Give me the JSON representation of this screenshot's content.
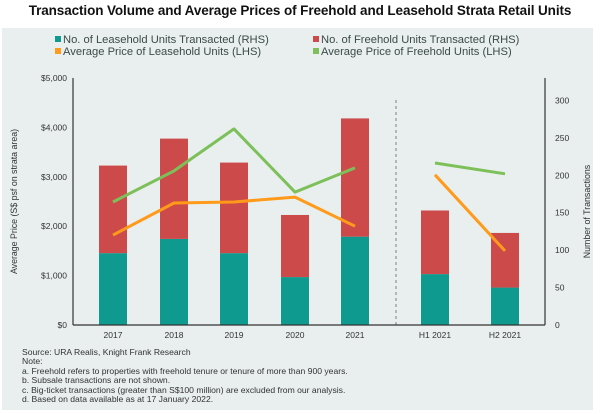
{
  "title": "Transaction Volume and Average Prices of Freehold and Leasehold Strata Retail Units",
  "colors": {
    "background": "#e8efee",
    "leasehold_units": "#0e9a8e",
    "freehold_units": "#cc4a4a",
    "leasehold_price": "#ff9a1a",
    "freehold_price": "#7dc05a",
    "axis": "#333333"
  },
  "notes": {
    "source": "Source: URA Realis, Knight Frank Research",
    "heading": "Note:",
    "items": [
      "a. Freehold refers to properties with freehold tenure or tenure of more than 900 years.",
      "b. Subsale transactions are not shown.",
      "c. Big-ticket transactions (greater than S$100 million) are excluded from our analysis.",
      "d. Based on data available as at 17 January 2022."
    ]
  },
  "chart_data": {
    "type": "bar",
    "subtype": "stacked-bar-with-lines-dual-axis",
    "title": "Transaction Volume and Average Prices of Freehold and Leasehold Strata Retail Units",
    "categories": [
      "2017",
      "2018",
      "2019",
      "2020",
      "2021",
      "H1 2021",
      "H2 2021"
    ],
    "separator_after_category": "2021",
    "ylabel_left": "Average Price (S$ psf on strata area)",
    "ylabel_right": "Number of Transactions",
    "ylim_left": [
      0,
      5000
    ],
    "ylim_right": [
      0,
      330
    ],
    "yticks_left": [
      0,
      1000,
      2000,
      3000,
      4000,
      5000
    ],
    "yticks_left_labels": [
      "$0",
      "$1,000",
      "$2,000",
      "$3,000",
      "$4,000",
      "$5,000"
    ],
    "yticks_right": [
      0,
      50,
      100,
      150,
      200,
      250,
      300
    ],
    "yticks_right_labels": [
      "0",
      "50",
      "100",
      "150",
      "200",
      "250",
      "300"
    ],
    "grid": false,
    "legend_position": "top",
    "series": [
      {
        "name": "No. of Leasehold Units Transacted (RHS)",
        "kind": "bar",
        "axis": "right",
        "stack": "units",
        "color_key": "leasehold_units",
        "values": [
          96,
          115,
          96,
          64,
          118,
          68,
          50
        ]
      },
      {
        "name": "No. of Freehold Units Transacted (RHS)",
        "kind": "bar",
        "axis": "right",
        "stack": "units",
        "color_key": "freehold_units",
        "values": [
          117,
          134,
          121,
          83,
          158,
          85,
          73
        ]
      },
      {
        "name": "Average Price of Leasehold Units (LHS)",
        "kind": "line",
        "axis": "left",
        "color_key": "leasehold_price",
        "segments": [
          [
            0,
            4
          ],
          [
            5,
            6
          ]
        ],
        "values": [
          1820,
          2470,
          2490,
          2590,
          2000,
          3040,
          1500
        ]
      },
      {
        "name": "Average Price of Freehold Units (LHS)",
        "kind": "line",
        "axis": "left",
        "color_key": "freehold_price",
        "segments": [
          [
            0,
            4
          ],
          [
            5,
            6
          ]
        ],
        "values": [
          2490,
          3120,
          3970,
          2690,
          3180,
          3280,
          3060
        ]
      }
    ]
  }
}
